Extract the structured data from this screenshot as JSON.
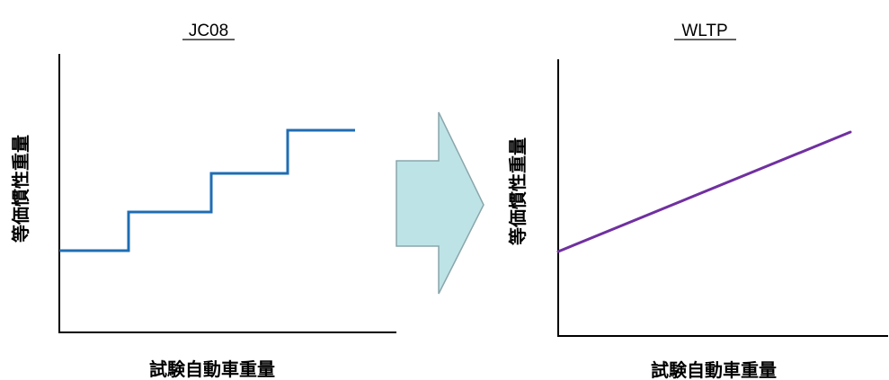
{
  "left_panel": {
    "title": "JC08",
    "ylabel": "等価慣性重量",
    "xlabel": "試験自動車重量",
    "line_color": "#1f6db3",
    "shape": "step"
  },
  "right_panel": {
    "title": "WLTP",
    "ylabel": "等価慣性重量",
    "xlabel": "試験自動車重量",
    "line_color": "#7030a0",
    "shape": "linear"
  },
  "arrow": {
    "direction": "right",
    "fill_color": "#bde3e6",
    "stroke_color": "#8aa6ab"
  }
}
